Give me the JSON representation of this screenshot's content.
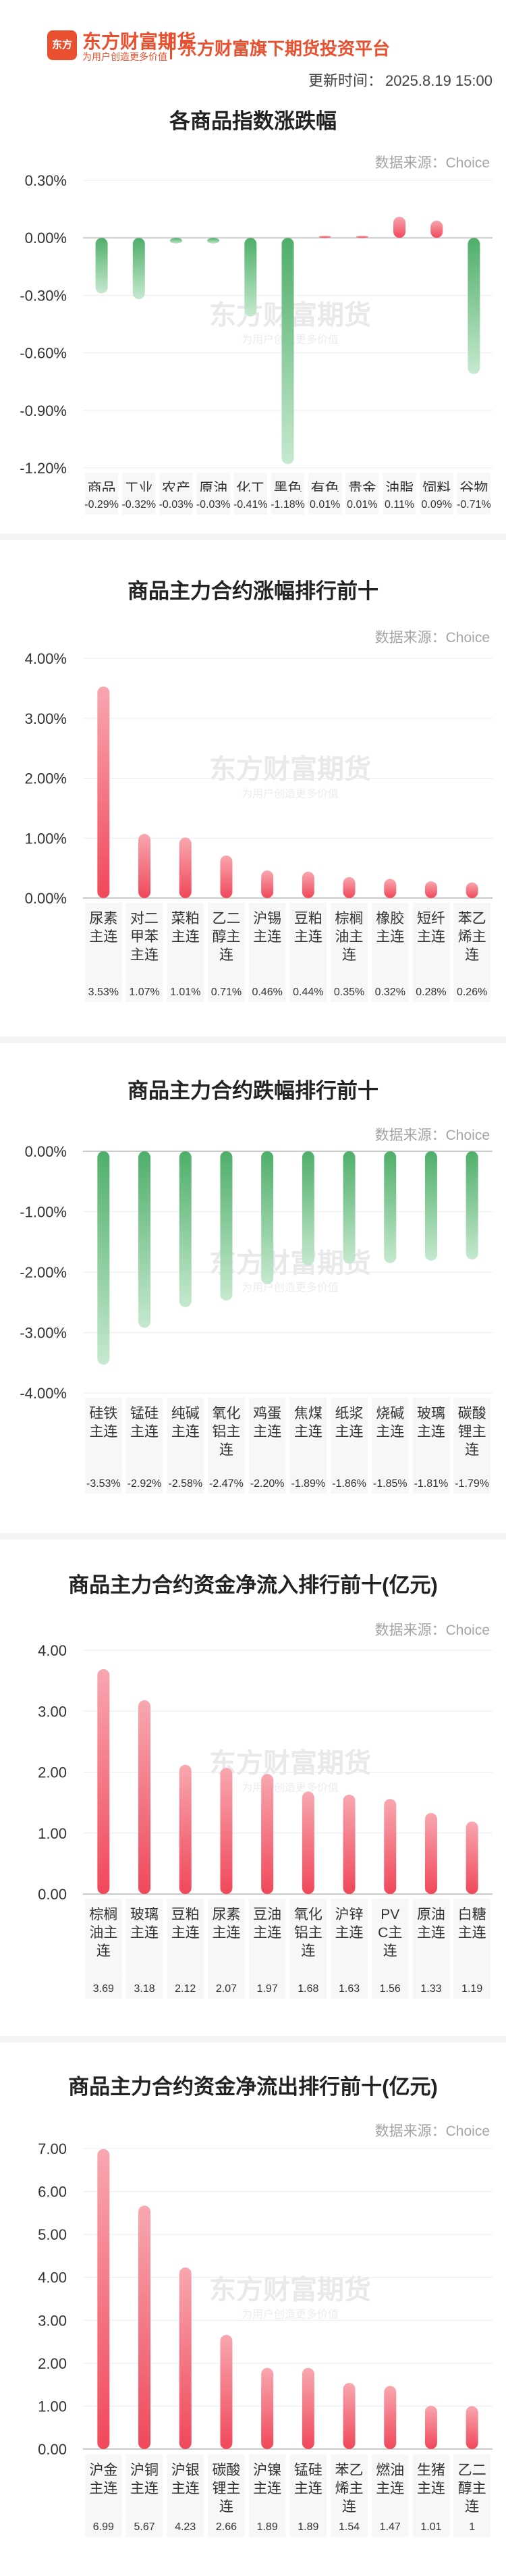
{
  "header": {
    "logo_mark": "东方",
    "logo_name": "东方财富期货",
    "logo_slogan": "为用户创造更多价值",
    "platform": "东方财富旗下期货投资平台",
    "update_label": "更新时间：",
    "update_time": "2025.8.19 15:00"
  },
  "watermark": {
    "name": "东方财富期货",
    "slogan": "为用户创造更多价值"
  },
  "colors": {
    "up": "#f0485a",
    "down": "#4fae6a"
  },
  "chart_data": [
    {
      "type": "bar",
      "title": "各商品指数涨跌幅",
      "source": "数据来源：Choice",
      "categories": [
        "商品综合",
        "工业品",
        "农产品",
        "原油",
        "化工",
        "黑色",
        "有色",
        "贵金属",
        "油脂",
        "饲料",
        "谷物"
      ],
      "values": [
        -0.29,
        -0.32,
        -0.03,
        -0.03,
        -0.41,
        -1.18,
        0.01,
        0.01,
        0.11,
        0.09,
        -0.71
      ],
      "value_labels": [
        "-0.29%",
        "-0.32%",
        "-0.03%",
        "-0.03%",
        "-0.41%",
        "-1.18%",
        "0.01%",
        "0.01%",
        "0.11%",
        "0.09%",
        "-0.71%"
      ],
      "yticks": [
        "0.30%",
        "0.00%",
        "-0.30%",
        "-0.60%",
        "-0.90%",
        "-1.20%"
      ],
      "ylim": [
        -1.2,
        0.3
      ]
    },
    {
      "type": "bar",
      "title": "商品主力合约涨幅排行前十",
      "source": "数据来源：Choice",
      "categories": [
        "尿素主连",
        "对二甲苯主连",
        "菜粕主连",
        "乙二醇主连",
        "沪锡主连",
        "豆粕主连",
        "棕榈油主连",
        "橡胶主连",
        "短纤主连",
        "苯乙烯主连"
      ],
      "values": [
        3.53,
        1.07,
        1.01,
        0.71,
        0.46,
        0.44,
        0.35,
        0.32,
        0.28,
        0.26
      ],
      "value_labels": [
        "3.53%",
        "1.07%",
        "1.01%",
        "0.71%",
        "0.46%",
        "0.44%",
        "0.35%",
        "0.32%",
        "0.28%",
        "0.26%"
      ],
      "yticks": [
        "4.00%",
        "3.00%",
        "2.00%",
        "1.00%",
        "0.00%"
      ],
      "ylim": [
        0,
        4
      ]
    },
    {
      "type": "bar",
      "title": "商品主力合约跌幅排行前十",
      "source": "数据来源：Choice",
      "categories": [
        "硅铁主连",
        "锰硅主连",
        "纯碱主连",
        "氧化铝主连",
        "鸡蛋主连",
        "焦煤主连",
        "纸浆主连",
        "烧碱主连",
        "玻璃主连",
        "碳酸锂主连"
      ],
      "values": [
        -3.53,
        -2.92,
        -2.58,
        -2.47,
        -2.2,
        -1.89,
        -1.86,
        -1.85,
        -1.81,
        -1.79
      ],
      "value_labels": [
        "-3.53%",
        "-2.92%",
        "-2.58%",
        "-2.47%",
        "-2.20%",
        "-1.89%",
        "-1.86%",
        "-1.85%",
        "-1.81%",
        "-1.79%"
      ],
      "yticks": [
        "0.00%",
        "-1.00%",
        "-2.00%",
        "-3.00%",
        "-4.00%"
      ],
      "ylim": [
        -4,
        0
      ]
    },
    {
      "type": "bar",
      "title": "商品主力合约资金净流入排行前十(亿元)",
      "source": "数据来源：Choice",
      "categories": [
        "棕榈油主连",
        "玻璃主连",
        "豆粕主连",
        "尿素主连",
        "豆油主连",
        "氧化铝主连",
        "沪锌主连",
        "PVC主连",
        "原油主连",
        "白糖主连"
      ],
      "values": [
        3.69,
        3.18,
        2.12,
        2.07,
        1.97,
        1.68,
        1.63,
        1.56,
        1.33,
        1.19
      ],
      "value_labels": [
        "3.69",
        "3.18",
        "2.12",
        "2.07",
        "1.97",
        "1.68",
        "1.63",
        "1.56",
        "1.33",
        "1.19"
      ],
      "yticks": [
        "4.00",
        "3.00",
        "2.00",
        "1.00",
        "0.00"
      ],
      "ylim": [
        0,
        4
      ]
    },
    {
      "type": "bar",
      "title": "商品主力合约资金净流出排行前十(亿元)",
      "source": "数据来源：Choice",
      "categories": [
        "沪金主连",
        "沪铜主连",
        "沪银主连",
        "碳酸锂主连",
        "沪镍主连",
        "锰硅主连",
        "苯乙烯主连",
        "燃油主连",
        "生猪主连",
        "乙二醇主连"
      ],
      "values": [
        6.99,
        5.67,
        4.23,
        2.66,
        1.89,
        1.89,
        1.54,
        1.47,
        1.01,
        1
      ],
      "value_labels": [
        "6.99",
        "5.67",
        "4.23",
        "2.66",
        "1.89",
        "1.89",
        "1.54",
        "1.47",
        "1.01",
        "1"
      ],
      "yticks": [
        "7.00",
        "6.00",
        "5.00",
        "4.00",
        "3.00",
        "2.00",
        "1.00",
        "0.00"
      ],
      "ylim": [
        0,
        7
      ]
    }
  ]
}
